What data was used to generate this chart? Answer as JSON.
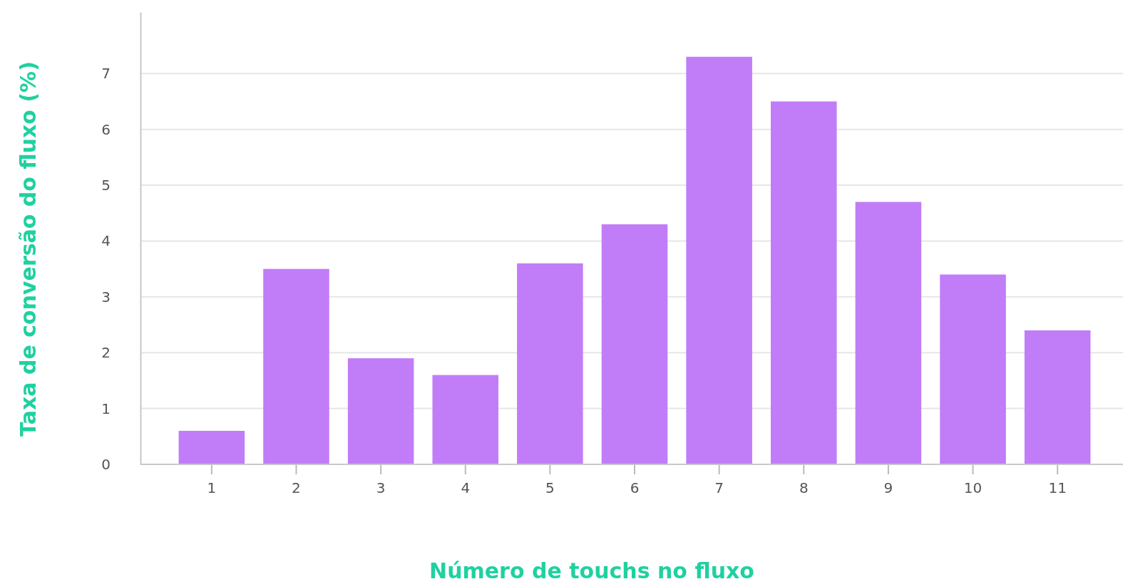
{
  "chart_data": {
    "type": "bar",
    "xlabel": "Número de touchs no fluxo",
    "ylabel": "Taxa de conversão do fluxo (%)",
    "categories": [
      "1",
      "2",
      "3",
      "4",
      "5",
      "6",
      "7",
      "8",
      "9",
      "10",
      "11"
    ],
    "values": [
      0.6,
      3.5,
      1.9,
      1.6,
      3.6,
      4.3,
      7.3,
      6.5,
      4.7,
      3.4,
      2.4
    ],
    "color": "#c17cf8",
    "ylim": [
      0,
      8.1
    ],
    "yticks": [
      0,
      1,
      2,
      3,
      4,
      5,
      6,
      7
    ],
    "grid": "y"
  }
}
